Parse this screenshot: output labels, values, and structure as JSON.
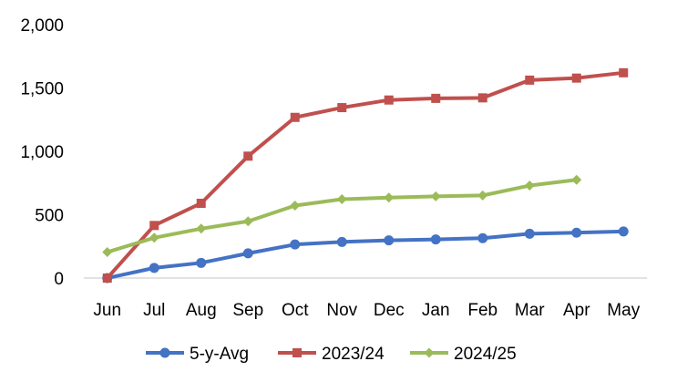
{
  "chart_data": {
    "type": "line",
    "title": "",
    "xlabel": "",
    "ylabel": "",
    "categories": [
      "Jun",
      "Jul",
      "Aug",
      "Sep",
      "Oct",
      "Nov",
      "Dec",
      "Jan",
      "Feb",
      "Mar",
      "Apr",
      "May"
    ],
    "ylim": [
      0,
      2000
    ],
    "yticks": [
      0,
      500,
      1000,
      1500,
      2000
    ],
    "ytick_labels": [
      "0",
      "500",
      "1,000",
      "1,500",
      "2,000"
    ],
    "grid": false,
    "legend_position": "bottom",
    "series": [
      {
        "name": "5-y-Avg",
        "color": "#4472C4",
        "marker": "circle",
        "values": [
          0,
          80,
          120,
          195,
          265,
          285,
          298,
          305,
          315,
          350,
          358,
          368
        ]
      },
      {
        "name": "2023/24",
        "color": "#C0504D",
        "marker": "square",
        "values": [
          0,
          415,
          590,
          962,
          1268,
          1345,
          1405,
          1418,
          1422,
          1562,
          1578,
          1620
        ]
      },
      {
        "name": "2024/25",
        "color": "#9BBB59",
        "marker": "diamond",
        "values": [
          205,
          318,
          390,
          448,
          572,
          622,
          635,
          645,
          652,
          730,
          775,
          null
        ]
      }
    ]
  }
}
